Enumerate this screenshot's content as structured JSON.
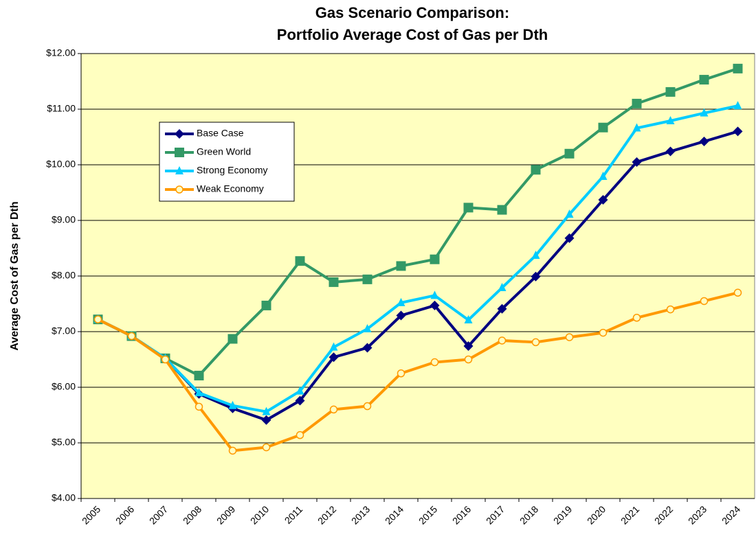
{
  "chart_data": {
    "type": "line",
    "title": [
      "Gas Scenario Comparison:",
      "Portfolio Average Cost of Gas per Dth"
    ],
    "y_label": "Average Cost of Gas per Dth",
    "categories": [
      "2005",
      "2006",
      "2007",
      "2008",
      "2009",
      "2010",
      "2011",
      "2012",
      "2013",
      "2014",
      "2015",
      "2016",
      "2017",
      "2018",
      "2019",
      "2020",
      "2021",
      "2022",
      "2023",
      "2024"
    ],
    "series": [
      {
        "name": "Base Case",
        "color": "#000080",
        "marker": "diamond",
        "values": [
          7.22,
          6.92,
          6.52,
          5.88,
          5.62,
          5.41,
          5.76,
          6.54,
          6.71,
          7.29,
          7.47,
          6.74,
          7.41,
          7.99,
          8.68,
          9.37,
          10.05,
          10.24,
          10.42,
          10.6
        ]
      },
      {
        "name": "Green World",
        "color": "#339966",
        "marker": "square",
        "values": [
          7.22,
          6.92,
          6.52,
          6.21,
          6.87,
          7.47,
          8.27,
          7.89,
          7.94,
          8.18,
          8.3,
          9.23,
          9.19,
          9.91,
          10.2,
          10.67,
          11.1,
          11.31,
          11.53,
          11.73
        ]
      },
      {
        "name": "Strong Economy",
        "color": "#00ccff",
        "marker": "triangle",
        "values": [
          7.22,
          6.92,
          6.52,
          5.9,
          5.67,
          5.56,
          5.93,
          6.72,
          7.05,
          7.52,
          7.65,
          7.21,
          7.79,
          8.37,
          9.11,
          9.79,
          10.66,
          10.79,
          10.93,
          11.06
        ]
      },
      {
        "name": "Weak Economy",
        "color": "#ff9900",
        "marker": "circle",
        "values": [
          7.22,
          6.92,
          6.5,
          5.65,
          4.86,
          4.92,
          5.14,
          5.6,
          5.66,
          6.25,
          6.45,
          6.5,
          6.84,
          6.81,
          6.9,
          6.98,
          7.25,
          7.4,
          7.55,
          7.7
        ]
      }
    ],
    "ylim": [
      4,
      12
    ],
    "yticks": [
      {
        "value": 4,
        "label": "$4.00"
      },
      {
        "value": 5,
        "label": "$5.00"
      },
      {
        "value": 6,
        "label": "$6.00"
      },
      {
        "value": 7,
        "label": "$7.00"
      },
      {
        "value": 8,
        "label": "$8.00"
      },
      {
        "value": 9,
        "label": "$9.00"
      },
      {
        "value": 10,
        "label": "$10.00"
      },
      {
        "value": 11,
        "label": "$11.00"
      },
      {
        "value": 12,
        "label": "$12.00"
      }
    ],
    "grid": true,
    "legend": "upper-left",
    "plot_background": "#ffffc0"
  }
}
